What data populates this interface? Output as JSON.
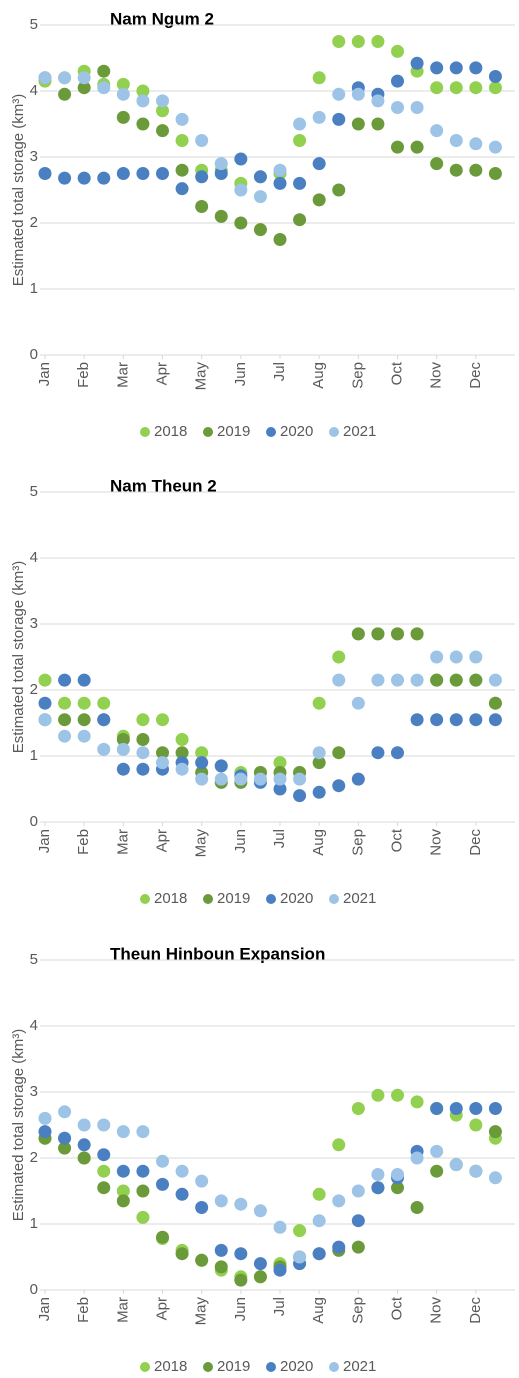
{
  "chart_data": [
    {
      "type": "scatter",
      "title": "Nam Ngum 2",
      "y_label": "Estimated total storage (km³)",
      "xlim": [
        0,
        12
      ],
      "xticks": [
        {
          "value": 0,
          "label": "Jan"
        },
        {
          "value": 1,
          "label": "Feb"
        },
        {
          "value": 2,
          "label": "Mar"
        },
        {
          "value": 3,
          "label": "Apr"
        },
        {
          "value": 4,
          "label": "May"
        },
        {
          "value": 5,
          "label": "Jun"
        },
        {
          "value": 6,
          "label": "Jul"
        },
        {
          "value": 7,
          "label": "Aug"
        },
        {
          "value": 8,
          "label": "Sep"
        },
        {
          "value": 9,
          "label": "Oct"
        },
        {
          "value": 10,
          "label": "Nov"
        },
        {
          "value": 11,
          "label": "Dec"
        }
      ],
      "ylim": [
        0,
        5
      ],
      "yticks": [
        0,
        1,
        2,
        3,
        4,
        5
      ],
      "grid": true,
      "legend": "bottom",
      "x": [
        0,
        0.5,
        1,
        1.5,
        2,
        2.5,
        3,
        3.5,
        4,
        4.5,
        5,
        5.5,
        6,
        6.5,
        7,
        7.5,
        8,
        8.5,
        9,
        9.5,
        10,
        10.5,
        11,
        11.5
      ],
      "series": [
        {
          "name": "2018",
          "color": "#92d050",
          "values": [
            4.15,
            4.2,
            4.3,
            4.1,
            4.1,
            4.0,
            3.7,
            3.25,
            2.8,
            2.8,
            2.6,
            2.7,
            2.75,
            3.25,
            4.2,
            4.75,
            4.75,
            4.75,
            4.6,
            4.3,
            4.05,
            4.05,
            4.05,
            4.05
          ]
        },
        {
          "name": "2019",
          "color": "#6b9a3a",
          "values": [
            4.2,
            3.95,
            4.05,
            4.3,
            3.6,
            3.5,
            3.4,
            2.8,
            2.25,
            2.1,
            2.0,
            1.9,
            1.75,
            2.05,
            2.35,
            2.5,
            3.5,
            3.5,
            3.15,
            3.15,
            2.9,
            2.8,
            2.8,
            2.75
          ]
        },
        {
          "name": "2020",
          "color": "#4a7fc1",
          "values": [
            2.75,
            2.68,
            2.68,
            2.68,
            2.75,
            2.75,
            2.75,
            2.52,
            2.7,
            2.75,
            2.97,
            2.7,
            2.6,
            2.6,
            2.9,
            3.57,
            4.05,
            3.95,
            4.15,
            4.42,
            4.35,
            4.35,
            4.35,
            4.22
          ]
        },
        {
          "name": "2021",
          "color": "#9dc3e6",
          "values": [
            4.2,
            4.2,
            4.2,
            4.05,
            3.95,
            3.85,
            3.85,
            3.57,
            3.25,
            2.9,
            2.5,
            2.4,
            2.8,
            3.5,
            3.6,
            3.95,
            3.95,
            3.85,
            3.75,
            3.75,
            3.4,
            3.25,
            3.2,
            3.15
          ]
        }
      ]
    },
    {
      "type": "scatter",
      "title": "Nam Theun 2",
      "y_label": "Estimated total storage (km³)",
      "xlim": [
        0,
        12
      ],
      "xticks": [
        {
          "value": 0,
          "label": "Jan"
        },
        {
          "value": 1,
          "label": "Feb"
        },
        {
          "value": 2,
          "label": "Mar"
        },
        {
          "value": 3,
          "label": "Apr"
        },
        {
          "value": 4,
          "label": "May"
        },
        {
          "value": 5,
          "label": "Jun"
        },
        {
          "value": 6,
          "label": "Jul"
        },
        {
          "value": 7,
          "label": "Aug"
        },
        {
          "value": 8,
          "label": "Sep"
        },
        {
          "value": 9,
          "label": "Oct"
        },
        {
          "value": 10,
          "label": "Nov"
        },
        {
          "value": 11,
          "label": "Dec"
        }
      ],
      "ylim": [
        0,
        5
      ],
      "yticks": [
        0,
        1,
        2,
        3,
        4,
        5
      ],
      "grid": true,
      "legend": "bottom",
      "x": [
        0,
        0.5,
        1,
        1.5,
        2,
        2.5,
        3,
        3.5,
        4,
        4.5,
        5,
        5.5,
        6,
        6.5,
        7,
        7.5,
        8,
        8.5,
        9,
        9.5,
        10,
        10.5,
        11,
        11.5
      ],
      "series": [
        {
          "name": "2018",
          "color": "#92d050",
          "values": [
            2.15,
            1.8,
            1.8,
            1.8,
            1.3,
            1.55,
            1.55,
            1.25,
            1.05,
            0.85,
            0.75,
            0.75,
            0.9,
            0.75,
            1.8,
            2.5,
            2.85,
            2.85,
            2.85,
            2.85,
            2.15,
            2.15,
            2.15,
            1.8
          ]
        },
        {
          "name": "2019",
          "color": "#6b9a3a",
          "values": [
            1.55,
            1.55,
            1.55,
            1.55,
            1.25,
            1.25,
            1.05,
            1.05,
            0.75,
            0.6,
            0.6,
            0.75,
            0.75,
            0.75,
            0.9,
            1.05,
            2.85,
            2.85,
            2.85,
            2.85,
            2.15,
            2.15,
            2.15,
            1.8
          ]
        },
        {
          "name": "2020",
          "color": "#4a7fc1",
          "values": [
            1.8,
            2.15,
            2.15,
            1.55,
            0.8,
            0.8,
            0.8,
            0.9,
            0.9,
            0.85,
            0.7,
            0.6,
            0.5,
            0.4,
            0.45,
            0.55,
            0.65,
            1.05,
            1.05,
            1.55,
            1.55,
            1.55,
            1.55,
            1.55
          ]
        },
        {
          "name": "2021",
          "color": "#9dc3e6",
          "values": [
            1.55,
            1.3,
            1.3,
            1.1,
            1.1,
            1.05,
            0.9,
            0.8,
            0.65,
            0.65,
            0.65,
            0.65,
            0.65,
            0.65,
            1.05,
            2.15,
            1.8,
            2.15,
            2.15,
            2.15,
            2.5,
            2.5,
            2.5,
            2.15
          ]
        }
      ]
    },
    {
      "type": "scatter",
      "title": "Theun Hinboun Expansion",
      "y_label": "Estimated total storage (km³)",
      "xlim": [
        0,
        12
      ],
      "xticks": [
        {
          "value": 0,
          "label": "Jan"
        },
        {
          "value": 1,
          "label": "Feb"
        },
        {
          "value": 2,
          "label": "Mar"
        },
        {
          "value": 3,
          "label": "Apr"
        },
        {
          "value": 4,
          "label": "May"
        },
        {
          "value": 5,
          "label": "Jun"
        },
        {
          "value": 6,
          "label": "Jul"
        },
        {
          "value": 7,
          "label": "Aug"
        },
        {
          "value": 8,
          "label": "Sep"
        },
        {
          "value": 9,
          "label": "Oct"
        },
        {
          "value": 10,
          "label": "Nov"
        },
        {
          "value": 11,
          "label": "Dec"
        }
      ],
      "ylim": [
        0,
        5
      ],
      "yticks": [
        0,
        1,
        2,
        3,
        4,
        5
      ],
      "grid": true,
      "legend": "bottom",
      "x": [
        0,
        0.5,
        1,
        1.5,
        2,
        2.5,
        3,
        3.5,
        4,
        4.5,
        5,
        5.5,
        6,
        6.5,
        7,
        7.5,
        8,
        8.5,
        9,
        9.5,
        10,
        10.5,
        11,
        11.5
      ],
      "series": [
        {
          "name": "2018",
          "color": "#92d050",
          "values": [
            2.3,
            2.3,
            2.0,
            1.8,
            1.5,
            1.1,
            0.78,
            0.6,
            0.45,
            0.3,
            0.2,
            0.2,
            0.4,
            0.9,
            1.45,
            2.2,
            2.75,
            2.95,
            2.95,
            2.85,
            2.75,
            2.65,
            2.5,
            2.3
          ]
        },
        {
          "name": "2019",
          "color": "#6b9a3a",
          "values": [
            2.3,
            2.15,
            2.0,
            1.55,
            1.35,
            1.5,
            0.8,
            0.55,
            0.45,
            0.35,
            0.15,
            0.2,
            0.35,
            0.5,
            0.55,
            0.6,
            0.65,
            1.55,
            1.55,
            1.25,
            1.8,
            1.9,
            1.8,
            2.4
          ]
        },
        {
          "name": "2020",
          "color": "#4a7fc1",
          "values": [
            2.4,
            2.3,
            2.2,
            2.05,
            1.8,
            1.8,
            1.6,
            1.45,
            1.25,
            0.6,
            0.55,
            0.4,
            0.3,
            0.4,
            0.55,
            0.65,
            1.05,
            1.55,
            1.7,
            2.1,
            2.75,
            2.75,
            2.75,
            2.75
          ]
        },
        {
          "name": "2021",
          "color": "#9dc3e6",
          "values": [
            2.6,
            2.7,
            2.5,
            2.5,
            2.4,
            2.4,
            1.95,
            1.8,
            1.65,
            1.35,
            1.3,
            1.2,
            0.95,
            0.5,
            1.05,
            1.35,
            1.5,
            1.75,
            1.75,
            2.0,
            2.1,
            1.9,
            1.8,
            1.7
          ]
        }
      ]
    }
  ]
}
